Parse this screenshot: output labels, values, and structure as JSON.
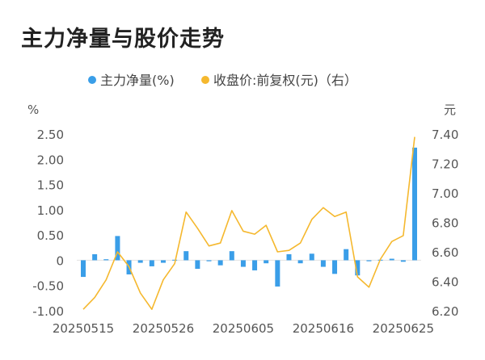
{
  "title": "主力净量与股价走势",
  "chart_data": {
    "type": "bar+line",
    "legend": [
      {
        "label": "主力净量(%)",
        "color": "#3a9ee8"
      },
      {
        "label": "收盘价:前复权(元)（右）",
        "color": "#f5b82e"
      }
    ],
    "left_axis": {
      "unit": "%",
      "ticks": [
        "2.50",
        "2.00",
        "1.50",
        "1.00",
        "0.50",
        "0",
        "-0.50",
        "-1.00"
      ],
      "range": [
        -1.0,
        2.5
      ]
    },
    "right_axis": {
      "unit": "元",
      "ticks": [
        "7.40",
        "7.20",
        "7.00",
        "6.80",
        "6.60",
        "6.40",
        "6.20"
      ],
      "range": [
        6.2,
        7.4
      ]
    },
    "x_tick_labels": [
      "20250515",
      "20250526",
      "20250605",
      "20250616",
      "20250625"
    ],
    "x_tick_index": [
      0,
      7,
      14,
      21,
      28
    ],
    "series": [
      {
        "name": "主力净量(%)",
        "kind": "bar",
        "values": [
          -0.33,
          0.12,
          0.02,
          0.48,
          -0.28,
          -0.05,
          -0.12,
          -0.05,
          0.01,
          0.18,
          -0.17,
          -0.02,
          -0.1,
          0.18,
          -0.13,
          -0.2,
          -0.06,
          -0.52,
          0.12,
          -0.06,
          0.13,
          -0.13,
          -0.27,
          0.22,
          -0.3,
          -0.02,
          0.01,
          0.03,
          -0.03,
          2.23
        ]
      },
      {
        "name": "收盘价:前复权(元)（右）",
        "kind": "line",
        "values": [
          6.21,
          6.29,
          6.41,
          6.6,
          6.5,
          6.32,
          6.21,
          6.41,
          6.52,
          6.87,
          6.76,
          6.64,
          6.66,
          6.88,
          6.74,
          6.72,
          6.78,
          6.6,
          6.61,
          6.66,
          6.82,
          6.9,
          6.84,
          6.87,
          6.43,
          6.36,
          6.55,
          6.67,
          6.71,
          7.38
        ]
      }
    ]
  }
}
